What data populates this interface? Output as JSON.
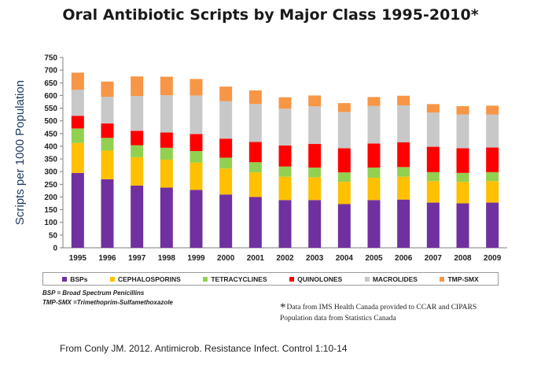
{
  "page": {
    "title": "Oral Antibiotic Scripts by Major Class 1995-2010*"
  },
  "chart_data": {
    "type": "bar",
    "stacked": true,
    "title": "Oral Antibiotic Scripts by Major Class 1995-2010*",
    "xlabel": "",
    "ylabel": "Scripts per 1000 Population",
    "ylim": [
      0,
      750
    ],
    "yticks": [
      0,
      50,
      100,
      150,
      200,
      250,
      300,
      350,
      400,
      450,
      500,
      550,
      600,
      650,
      700,
      750
    ],
    "grid": false,
    "legend_position": "bottom",
    "categories": [
      "1995",
      "1996",
      "1997",
      "1998",
      "1999",
      "2000",
      "2001",
      "2002",
      "2003",
      "2004",
      "2005",
      "2006",
      "2007",
      "2008",
      "2009"
    ],
    "series": [
      {
        "name": "BSPs",
        "color": "#7030A0",
        "values": [
          295,
          270,
          245,
          237,
          228,
          210,
          200,
          188,
          188,
          172,
          188,
          190,
          178,
          175,
          178
        ]
      },
      {
        "name": "CEPHALOSPORINS",
        "color": "#FFC000",
        "values": [
          118,
          113,
          112,
          110,
          108,
          102,
          97,
          92,
          90,
          88,
          88,
          90,
          85,
          85,
          85
        ]
      },
      {
        "name": "TETRACYCLINES",
        "color": "#92D050",
        "values": [
          57,
          50,
          47,
          47,
          45,
          43,
          40,
          40,
          38,
          37,
          40,
          38,
          35,
          35,
          35
        ]
      },
      {
        "name": "QUINOLONES",
        "color": "#FF0000",
        "values": [
          50,
          57,
          57,
          60,
          67,
          75,
          80,
          83,
          93,
          95,
          95,
          98,
          100,
          97,
          97
        ]
      },
      {
        "name": "MACROLIDES",
        "color": "#C8C8C8",
        "values": [
          103,
          105,
          137,
          147,
          152,
          148,
          150,
          145,
          148,
          143,
          148,
          145,
          135,
          133,
          130
        ]
      },
      {
        "name": "TMP-SMX",
        "color": "#F79646",
        "values": [
          67,
          60,
          77,
          73,
          65,
          57,
          53,
          45,
          43,
          35,
          35,
          38,
          33,
          33,
          35
        ]
      }
    ]
  },
  "footnotes": {
    "bsp": "BSP = Broad Spectrum Penicillins",
    "tmp": "TMP-SMX =Trimethoprim-Sulfamethoxazole",
    "source_asterisk": "*",
    "source_line1": "Data from IMS Health Canada provided to CCAR and CIPARS",
    "source_line2": "Population data from Statistics Canada"
  },
  "citation": "From Conly JM. 2012. Antimicrob. Resistance Infect. Control 1:10-14"
}
